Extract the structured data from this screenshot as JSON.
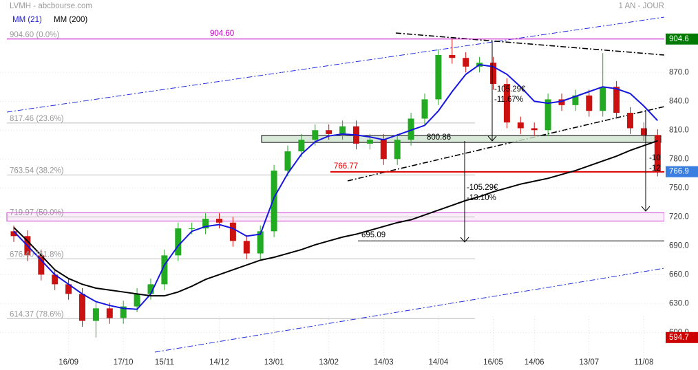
{
  "chart_data": {
    "type": "candlestick",
    "title": "LVMH - abcbourse.com",
    "period": "1 AN - JOUR",
    "categories": [
      null,
      null,
      null,
      null,
      "16/09",
      null,
      null,
      null,
      "17/10",
      null,
      null,
      "15/11",
      null,
      null,
      null,
      "14/12",
      null,
      null,
      null,
      "13/01",
      null,
      null,
      null,
      "13/02",
      null,
      null,
      null,
      "14/03",
      null,
      null,
      null,
      "14/04",
      null,
      null,
      null,
      "16/05",
      null,
      null,
      "14/06",
      null,
      null,
      null,
      "13/07",
      null,
      null,
      null,
      "11/08",
      null
    ],
    "open": [
      705,
      700,
      680,
      660,
      650,
      640,
      612,
      625,
      615,
      627,
      640,
      650,
      680,
      708,
      708,
      718,
      714,
      695,
      682,
      705,
      768,
      788,
      800,
      810,
      806,
      814,
      796,
      800,
      780,
      800,
      822,
      842,
      888,
      885,
      876,
      880,
      858,
      818,
      812,
      810,
      842,
      836,
      846,
      830,
      855,
      828,
      812,
      805
    ],
    "high": [
      711,
      706,
      686,
      666,
      656,
      646,
      631,
      631,
      633,
      646,
      656,
      686,
      714,
      714,
      724,
      724,
      720,
      701,
      711,
      774,
      794,
      806,
      816,
      816,
      820,
      820,
      806,
      806,
      806,
      828,
      848,
      894,
      904.6,
      891,
      886,
      886,
      864,
      824,
      818,
      848,
      848,
      852,
      852,
      890,
      861,
      834,
      818,
      811
    ],
    "low": [
      694,
      674,
      654,
      644,
      634,
      606,
      594.7,
      609,
      609,
      621,
      634,
      644,
      674,
      702,
      702,
      708,
      689,
      676,
      676,
      699,
      762,
      782,
      794,
      800,
      800,
      790,
      790,
      774,
      774,
      794,
      816,
      836,
      879,
      870,
      870,
      852,
      812,
      806,
      804,
      804,
      830,
      830,
      824,
      824,
      822,
      806,
      799,
      762
    ],
    "close": [
      700,
      680,
      660,
      650,
      640,
      612,
      625,
      615,
      627,
      640,
      650,
      680,
      708,
      708,
      718,
      714,
      695,
      682,
      705,
      768,
      788,
      800,
      810,
      806,
      814,
      796,
      800,
      780,
      800,
      822,
      842,
      888,
      885,
      876,
      880,
      858,
      818,
      812,
      810,
      842,
      836,
      846,
      830,
      855,
      828,
      812,
      805,
      766.9
    ],
    "up_color": "#22aa22",
    "down_color": "#cc1111",
    "series": [
      {
        "name": "MM (21)",
        "color": "#1515e0",
        "values": [
          705,
          690,
          675,
          660,
          650,
          640,
          632,
          628,
          625,
          624,
          640,
          670,
          690,
          705,
          710,
          712,
          708,
          700,
          702,
          740,
          765,
          785,
          798,
          804,
          806,
          805,
          803,
          800,
          805,
          810,
          815,
          830,
          850,
          868,
          878,
          876,
          868,
          855,
          840,
          838,
          840,
          845,
          850,
          855,
          853,
          848,
          835,
          820
        ]
      },
      {
        "name": "MM (200)",
        "color": "#000000",
        "values": [
          709,
          695,
          680,
          665,
          656,
          650,
          646,
          644,
          642,
          640,
          638,
          638,
          642,
          648,
          655,
          660,
          665,
          670,
          675,
          678,
          682,
          686,
          691,
          695,
          699,
          702,
          706,
          710,
          714,
          717,
          722,
          727,
          732,
          737,
          741,
          746,
          750,
          754,
          757,
          760,
          764,
          768,
          773,
          778,
          783,
          789,
          794,
          799
        ]
      }
    ],
    "ylim": [
      576,
      933
    ],
    "yticks": [
      {
        "value": 600,
        "label": "600.0"
      },
      {
        "value": 630,
        "label": "630.0"
      },
      {
        "value": 660,
        "label": "660.0"
      },
      {
        "value": 690,
        "label": "690.0"
      },
      {
        "value": 720,
        "label": "720.0"
      },
      {
        "value": 750,
        "label": "750.0"
      },
      {
        "value": 780,
        "label": "780.0"
      },
      {
        "value": 810,
        "label": "810.0"
      },
      {
        "value": 840,
        "label": "840.0"
      },
      {
        "value": 870,
        "label": "870.0"
      }
    ],
    "fib_levels": [
      {
        "value": 904.6,
        "label": "904.60 (0.0%)"
      },
      {
        "value": 817.46,
        "label": "817.46 (23.6%)"
      },
      {
        "value": 763.54,
        "label": "763.54 (38.2%)"
      },
      {
        "value": 719.97,
        "label": "719.97 (50.0%)"
      },
      {
        "value": 676.4,
        "label": "676.40 (61.8%)"
      },
      {
        "value": 614.37,
        "label": "614.37 (78.6%)"
      }
    ],
    "levels": [
      {
        "value": 904.6,
        "label": "904.60",
        "color": "#c000c0"
      },
      {
        "value": 800.86,
        "label": "800.86",
        "color": "#000000"
      },
      {
        "value": 766.77,
        "label": "766.77",
        "color": "#e00000"
      },
      {
        "value": 695.09,
        "label": "695.09",
        "color": "#000000"
      }
    ],
    "price_tags": [
      {
        "value": 904.6,
        "color": "#007a00"
      },
      {
        "value": 766.9,
        "color": "#3a7ee0"
      },
      {
        "value": 594.7,
        "color": "#cc0000"
      }
    ],
    "annotations": [
      "-105.29€",
      "-11.67%",
      "-105.29€",
      "-13.10%",
      "-10",
      "-12"
    ]
  }
}
